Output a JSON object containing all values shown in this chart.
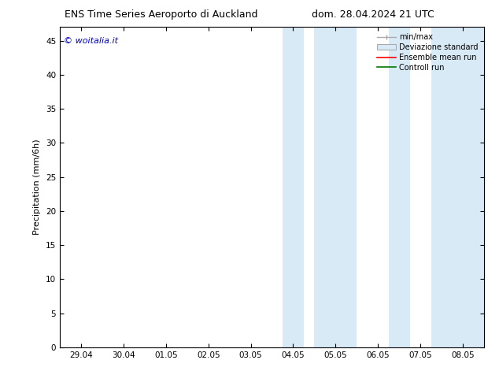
{
  "title_left": "ENS Time Series Aeroporto di Auckland",
  "title_right": "dom. 28.04.2024 21 UTC",
  "ylabel": "Precipitation (mm/6h)",
  "xtick_labels": [
    "29.04",
    "30.04",
    "01.05",
    "02.05",
    "03.05",
    "04.05",
    "05.05",
    "06.05",
    "07.05",
    "08.05"
  ],
  "xtick_values": [
    0,
    1,
    2,
    3,
    4,
    5,
    6,
    7,
    8,
    9
  ],
  "ylim": [
    0,
    47
  ],
  "yticks": [
    0,
    5,
    10,
    15,
    20,
    25,
    30,
    35,
    40,
    45
  ],
  "xlim": [
    -0.5,
    9.5
  ],
  "shaded_bands": [
    [
      4.75,
      5.25
    ],
    [
      5.5,
      6.5
    ],
    [
      7.25,
      7.75
    ],
    [
      8.25,
      9.5
    ]
  ],
  "shaded_color": "#d9eaf7",
  "band_divider_color": "#b0cfe0",
  "watermark_text": "© woitalia.it",
  "watermark_color": "#0000cc",
  "legend_labels": [
    "min/max",
    "Deviazione standard",
    "Ensemble mean run",
    "Controll run"
  ],
  "legend_colors": [
    "#aaaaaa",
    "#cce0f0",
    "#ff0000",
    "#007700"
  ],
  "legend_styles": [
    "errorbar",
    "patch",
    "line",
    "line"
  ],
  "bg_color": "#ffffff",
  "title_fontsize": 9,
  "tick_fontsize": 7.5,
  "ylabel_fontsize": 8,
  "legend_fontsize": 7,
  "watermark_fontsize": 8
}
